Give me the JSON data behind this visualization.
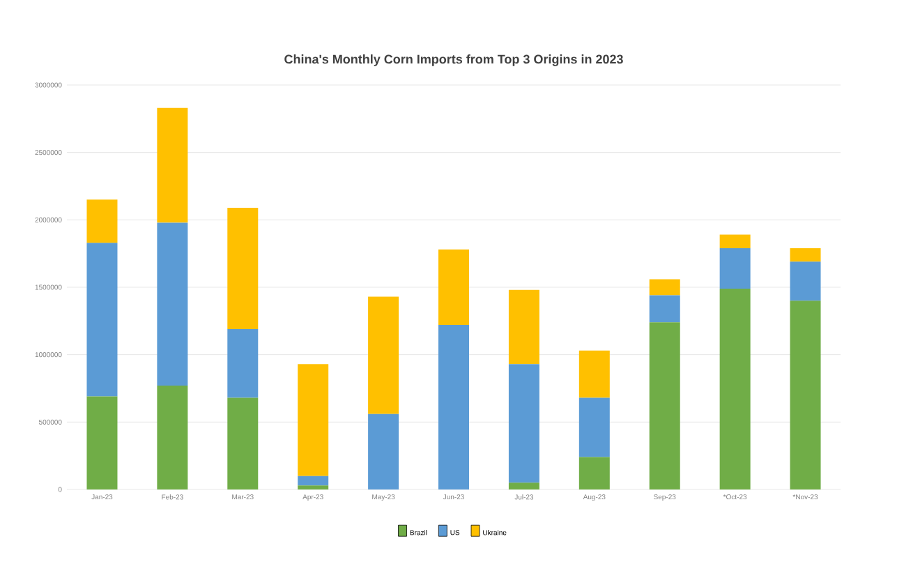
{
  "chart_data": {
    "type": "bar",
    "stacked": true,
    "title": "China's Monthly Corn Imports from Top 3 Origins in 2023",
    "categories": [
      "Jan-23",
      "Feb-23",
      "Mar-23",
      "Apr-23",
      "May-23",
      "Jun-23",
      "Jul-23",
      "Aug-23",
      "Sep-23",
      "*Oct-23",
      "*Nov-23"
    ],
    "series": [
      {
        "name": "Brazil",
        "color": "#70ad47",
        "values": [
          690000,
          770000,
          680000,
          30000,
          0,
          0,
          50000,
          240000,
          1240000,
          1490000,
          1400000
        ]
      },
      {
        "name": "US",
        "color": "#5b9bd5",
        "values": [
          1140000,
          1210000,
          510000,
          70000,
          560000,
          1220000,
          880000,
          440000,
          200000,
          300000,
          290000
        ]
      },
      {
        "name": "Ukraine",
        "color": "#ffc000",
        "values": [
          320000,
          850000,
          900000,
          830000,
          870000,
          560000,
          550000,
          350000,
          120000,
          100000,
          100000
        ]
      }
    ],
    "ylim": [
      0,
      3000000
    ],
    "yticks": [
      0,
      500000,
      1000000,
      1500000,
      2000000,
      2500000,
      3000000
    ],
    "grid": "y",
    "legend": "bottom"
  }
}
